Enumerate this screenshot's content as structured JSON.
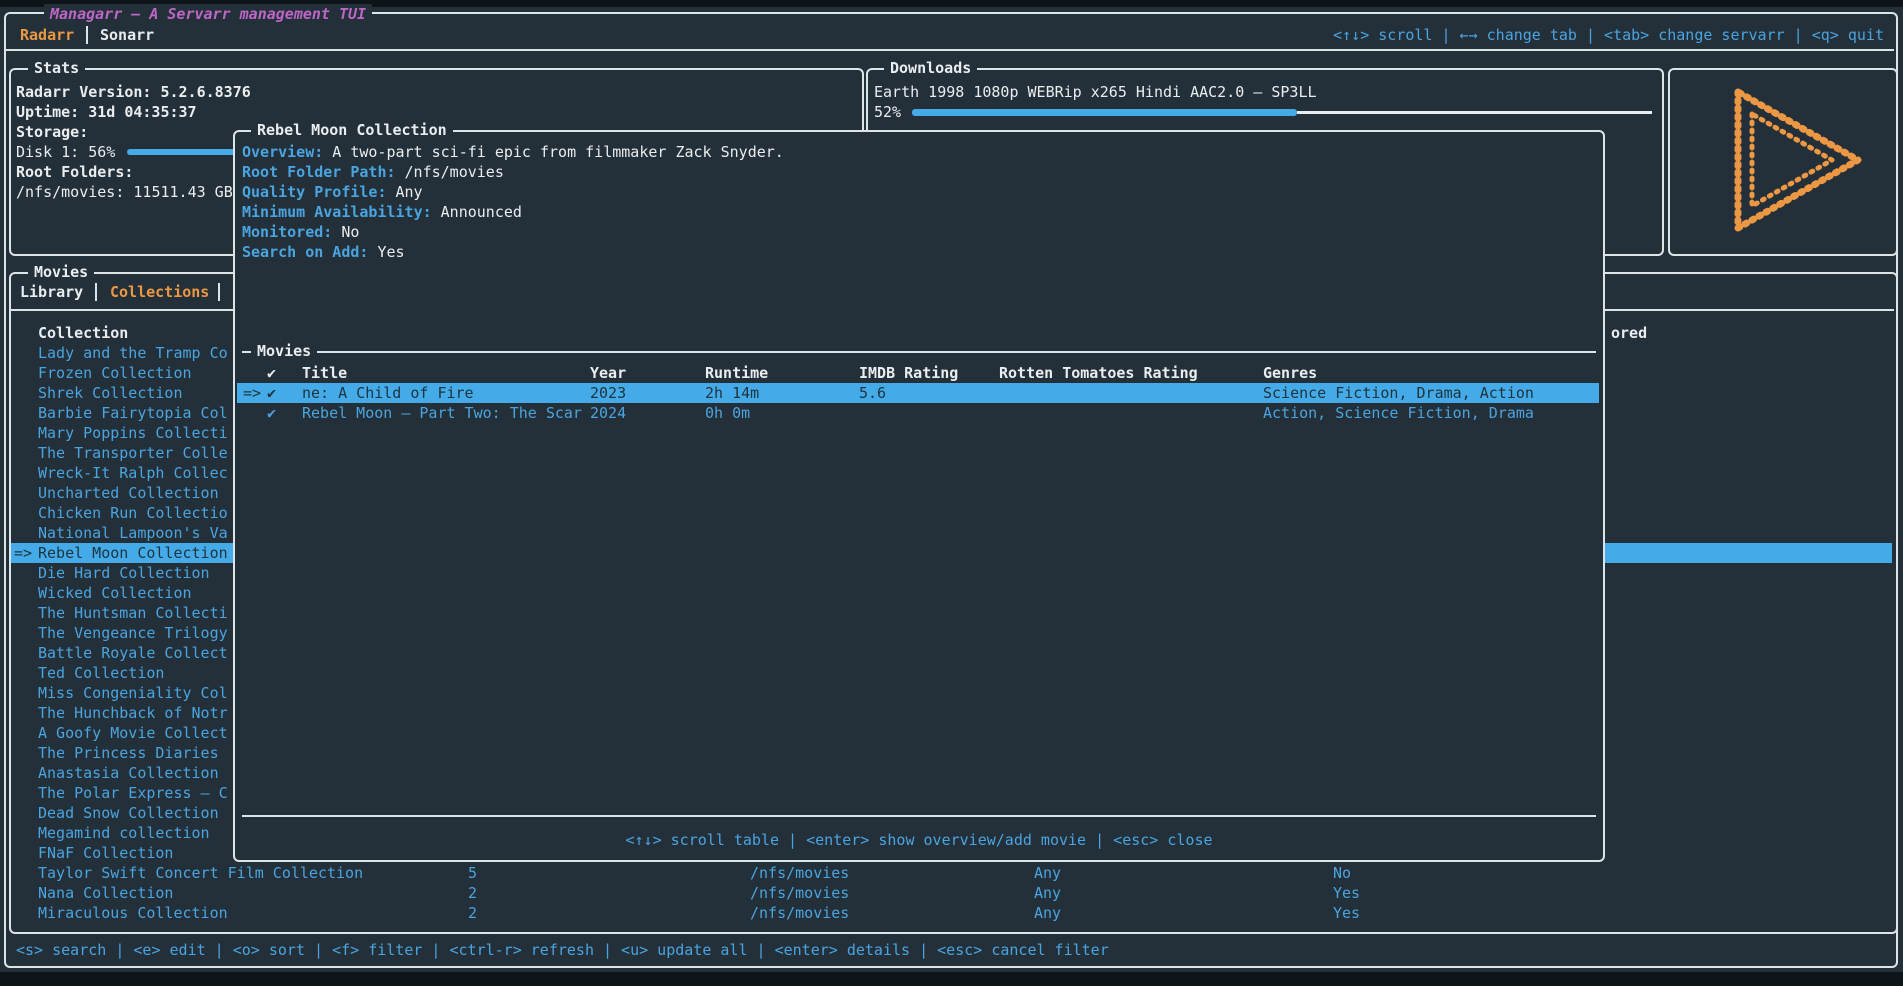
{
  "app": {
    "title": "Managarr – A Servarr management TUI",
    "servarr_tabs": [
      {
        "label": "Radarr",
        "active": true
      },
      {
        "label": "Sonarr",
        "active": false
      }
    ],
    "header_keybinds": "<↑↓> scroll | ←→ change tab | <tab> change servarr | <q> quit"
  },
  "stats": {
    "title": "Stats",
    "version_label": "Radarr Version:",
    "version_value": "5.2.6.8376",
    "uptime_label": "Uptime:",
    "uptime_value": "31d 04:35:37",
    "storage_label": "Storage:",
    "disk_label": "Disk 1: 56%",
    "disk_percent": 56,
    "root_folders_label": "Root Folders:",
    "root_folder_value": "/nfs/movies: 11511.43 GB"
  },
  "downloads": {
    "title": "Downloads",
    "item": "Earth 1998 1080p WEBRip x265 Hindi AAC2.0 – SP3LL",
    "percent_label": "52%",
    "percent": 52
  },
  "movies_panel": {
    "title": "Movies",
    "tabs": [
      {
        "label": "Library",
        "active": false
      },
      {
        "label": "Collections",
        "active": true
      }
    ],
    "collection_header": "Collection",
    "monitored_header_fragment": "ored",
    "selected_index": 10,
    "cursor": "=>",
    "collections": [
      "Lady and the Tramp Co",
      "Frozen Collection",
      "Shrek Collection",
      "Barbie Fairytopia Col",
      "Mary Poppins Collecti",
      "The Transporter Colle",
      "Wreck-It Ralph Collec",
      "Uncharted Collection",
      "Chicken Run Collectio",
      "National Lampoon's Va",
      "Rebel Moon Collection",
      "Die Hard Collection",
      "Wicked Collection",
      "The Huntsman Collecti",
      "The Vengeance Trilogy",
      "Battle Royale Collect",
      "Ted Collection",
      "Miss Congeniality Col",
      "The Hunchback of Notr",
      "A Goofy Movie Collect",
      "The Princess Diaries",
      "Anastasia Collection",
      "The Polar Express – C",
      "Dead Snow Collection",
      "Megamind collection",
      "FNaF Collection",
      "Taylor Swift Concert Film Collection",
      "Nana Collection",
      "Miraculous Collection"
    ],
    "background_rows": [
      {
        "row_index": 26,
        "movie_count": "5",
        "root_folder_path": "/nfs/movies",
        "quality_profile": "Any",
        "monitored": "No"
      },
      {
        "row_index": 27,
        "movie_count": "2",
        "root_folder_path": "/nfs/movies",
        "quality_profile": "Any",
        "monitored": "Yes"
      },
      {
        "row_index": 28,
        "movie_count": "2",
        "root_folder_path": "/nfs/movies",
        "quality_profile": "Any",
        "monitored": "Yes"
      }
    ]
  },
  "modal": {
    "title": "Rebel Moon Collection",
    "fields": [
      {
        "label": "Overview:",
        "value": "A two-part sci-fi epic from filmmaker Zack Snyder."
      },
      {
        "label": "Root Folder Path:",
        "value": "/nfs/movies"
      },
      {
        "label": "Quality Profile:",
        "value": "Any"
      },
      {
        "label": "Minimum Availability:",
        "value": "Announced"
      },
      {
        "label": "Monitored:",
        "value": "No"
      },
      {
        "label": "Search on Add:",
        "value": "Yes"
      }
    ],
    "table": {
      "title": "Movies",
      "columns": [
        "✔",
        "Title",
        "Year",
        "Runtime",
        "IMDB Rating",
        "Rotten Tomatoes Rating",
        "Genres"
      ],
      "rows": [
        {
          "selected": true,
          "cursor": "=>",
          "check": "✔",
          "title": "ne: A Child of Fire",
          "year": "2023",
          "runtime": "2h 14m",
          "imdb": "5.6",
          "rt": "",
          "genres": "Science Fiction, Drama, Action"
        },
        {
          "selected": false,
          "cursor": "",
          "check": "✔",
          "title": "Rebel Moon – Part Two: The Scar",
          "year": "2024",
          "runtime": "0h 0m",
          "imdb": "",
          "rt": "",
          "genres": "Action, Science Fiction, Drama"
        }
      ]
    },
    "footer_keybinds": "<↑↓> scroll table | <enter> show overview/add movie | <esc> close"
  },
  "footer": {
    "keybinds": "<s> search | <e> edit | <o> sort | <f> filter | <ctrl-r> refresh | <u> update all | <enter> details | <esc> cancel filter"
  },
  "colors": {
    "background": "#243039",
    "outside": "#0e1519",
    "panel_border": "#dde4e8",
    "foreground": "#e9edef",
    "accent_blue": "#4aa4e0",
    "accent_orange": "#eb9743",
    "title_magenta": "#bc66c6",
    "selection_blue": "#45abe8",
    "selection_text": "#1d333d"
  }
}
